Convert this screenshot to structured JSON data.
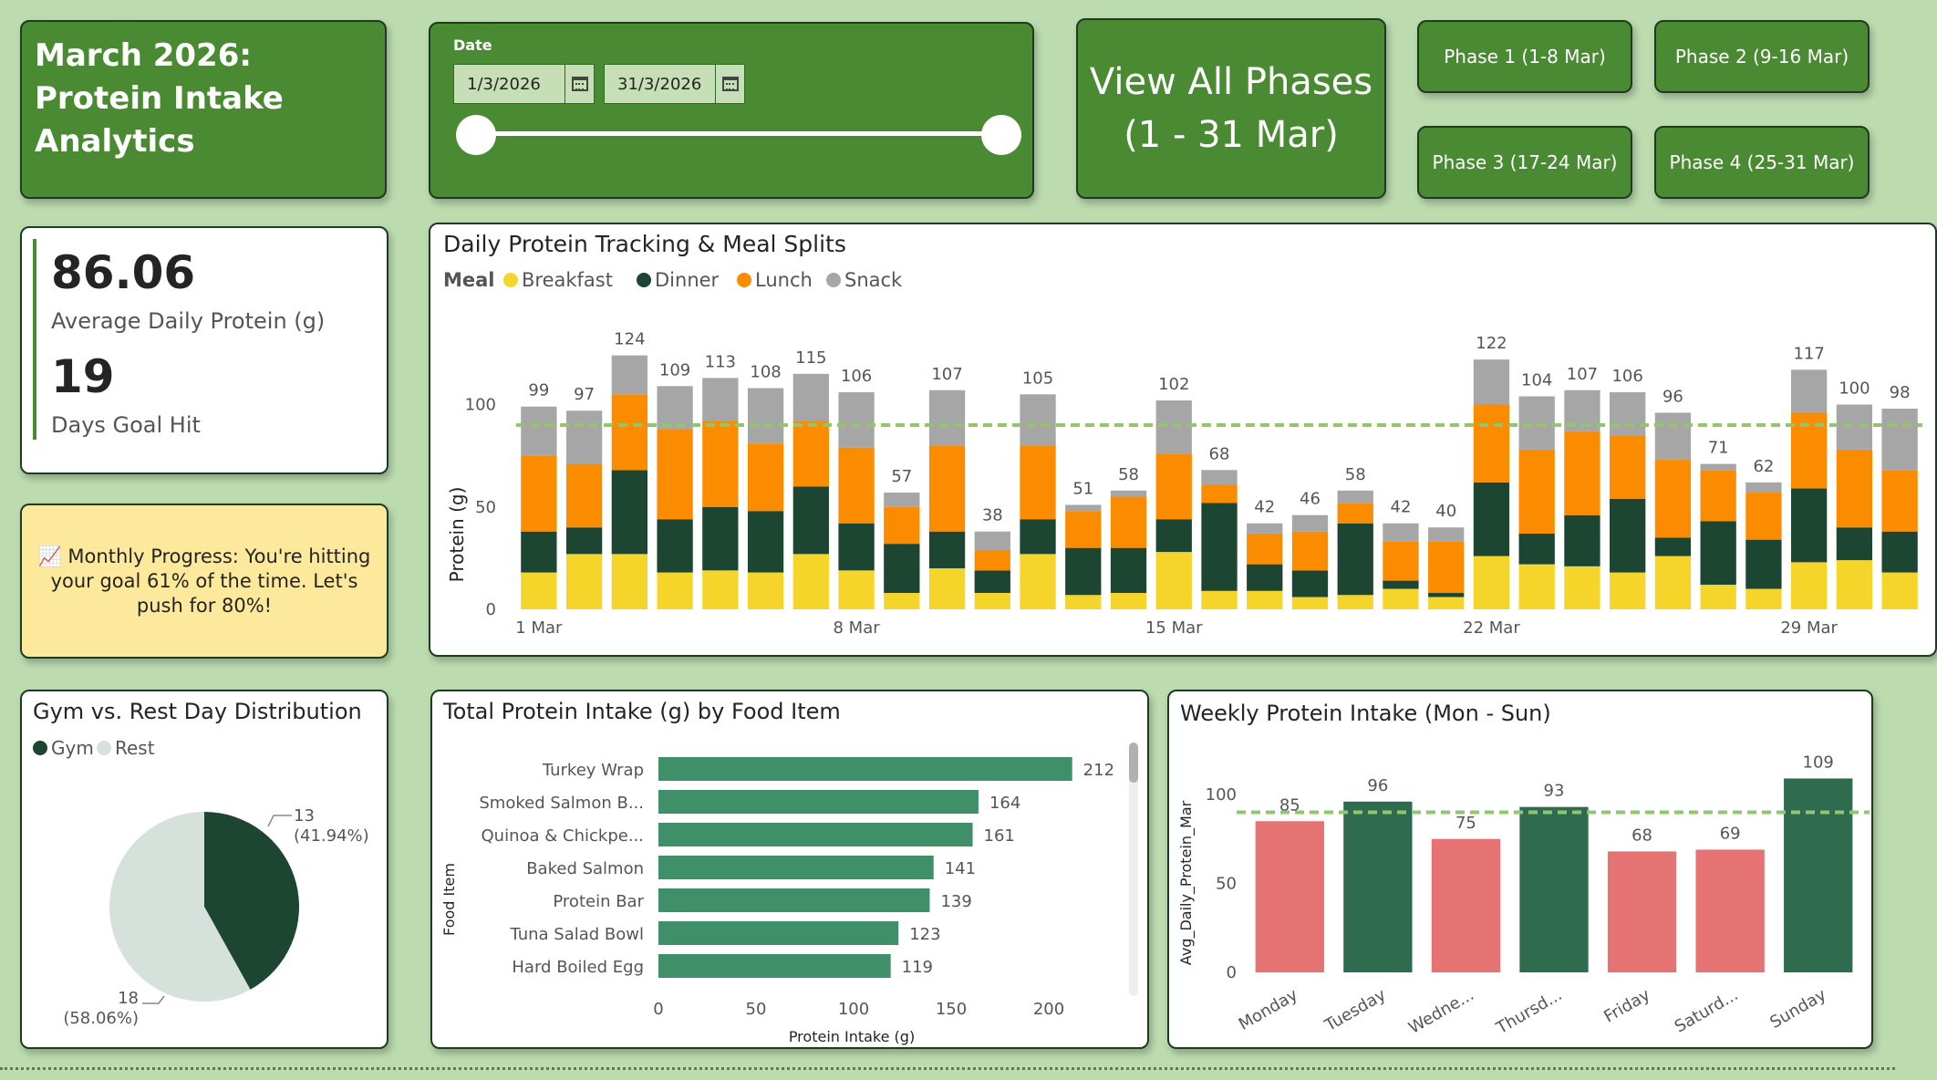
{
  "header": {
    "title_lines": [
      "March 2026:",
      "Protein Intake",
      "Analytics"
    ]
  },
  "date_filter": {
    "label": "Date",
    "start": "1/3/2026",
    "end": "31/3/2026"
  },
  "view_all": {
    "line1": "View All Phases",
    "line2": "(1 - 31 Mar)"
  },
  "phases": {
    "p1": "Phase 1 (1-8 Mar)",
    "p2": "Phase 2 (9-16 Mar)",
    "p3": "Phase 3 (17-24 Mar)",
    "p4": "Phase 4 (25-31 Mar)"
  },
  "kpi": {
    "avg_value": "86.06",
    "avg_label": "Average Daily Protein (g)",
    "days_value": "19",
    "days_label": "Days Goal Hit"
  },
  "progress": {
    "icon": "chart-increasing-icon",
    "text": "📈 Monthly Progress: You're hitting your goal 61% of the time. Let's push for 80%!"
  },
  "colors": {
    "breakfast": "#f6d52a",
    "dinner": "#1c4532",
    "lunch": "#fb8c00",
    "snack": "#a6a6a6",
    "goal_line": "#8fc770",
    "gym": "#1c4532",
    "rest": "#d6e1dc",
    "food_bar": "#3f8f68",
    "below_goal": "#e57373",
    "above_goal": "#2e6b4f"
  },
  "chart_data": [
    {
      "id": "daily",
      "type": "bar",
      "title": "Daily Protein Tracking & Meal Splits",
      "legend_title": "Meal",
      "legend_position": "top-left",
      "ylabel": "Protein (g)",
      "xlabel": "",
      "ylim": [
        0,
        130
      ],
      "yticks": [
        0,
        50,
        100
      ],
      "goal_line": 90,
      "x_tick_labels": [
        {
          "day": 1,
          "label": "1 Mar"
        },
        {
          "day": 8,
          "label": "8 Mar"
        },
        {
          "day": 15,
          "label": "15 Mar"
        },
        {
          "day": 22,
          "label": "22 Mar"
        },
        {
          "day": 29,
          "label": "29 Mar"
        }
      ],
      "categories": [
        1,
        2,
        3,
        4,
        5,
        6,
        7,
        8,
        9,
        10,
        11,
        12,
        13,
        14,
        15,
        16,
        17,
        18,
        19,
        20,
        21,
        22,
        23,
        24,
        25,
        26,
        27,
        28,
        29,
        30,
        31
      ],
      "totals": [
        99,
        97,
        124,
        109,
        113,
        108,
        115,
        106,
        57,
        107,
        38,
        105,
        51,
        58,
        102,
        68,
        42,
        46,
        58,
        42,
        40,
        122,
        104,
        107,
        106,
        96,
        71,
        62,
        117,
        100,
        98
      ],
      "series": [
        {
          "name": "Breakfast",
          "values": [
            18,
            27,
            27,
            18,
            19,
            18,
            27,
            19,
            8,
            20,
            8,
            27,
            7,
            8,
            28,
            9,
            9,
            6,
            7,
            10,
            6,
            26,
            22,
            21,
            18,
            26,
            12,
            10,
            23,
            24,
            18
          ]
        },
        {
          "name": "Dinner",
          "values": [
            20,
            13,
            41,
            26,
            31,
            30,
            33,
            23,
            24,
            18,
            11,
            17,
            23,
            22,
            16,
            43,
            13,
            13,
            35,
            4,
            2,
            36,
            15,
            25,
            36,
            9,
            31,
            24,
            36,
            16,
            20
          ]
        },
        {
          "name": "Lunch",
          "values": [
            37,
            31,
            37,
            44,
            42,
            33,
            32,
            37,
            18,
            42,
            10,
            36,
            18,
            25,
            32,
            9,
            15,
            19,
            10,
            19,
            25,
            38,
            41,
            41,
            31,
            38,
            25,
            23,
            37,
            38,
            30
          ]
        },
        {
          "name": "Snack",
          "values": [
            24,
            26,
            19,
            21,
            21,
            27,
            23,
            27,
            7,
            27,
            9,
            25,
            3,
            3,
            26,
            7,
            5,
            8,
            6,
            9,
            7,
            22,
            26,
            20,
            21,
            23,
            3,
            5,
            21,
            22,
            30
          ]
        }
      ]
    },
    {
      "id": "gym",
      "type": "pie",
      "title": "Gym vs. Rest Day Distribution",
      "legend_position": "top-left",
      "slices": [
        {
          "name": "Gym",
          "value": 13,
          "label": "13",
          "pct": "(41.94%)"
        },
        {
          "name": "Rest",
          "value": 18,
          "label": "18",
          "pct": "(58.06%)"
        }
      ]
    },
    {
      "id": "food",
      "type": "bar",
      "orientation": "horizontal",
      "title": "Total Protein Intake (g) by Food Item",
      "xlabel": "Protein Intake (g)",
      "ylabel": "Food Item",
      "xlim": [
        0,
        230
      ],
      "xticks": [
        0,
        50,
        100,
        150,
        200
      ],
      "categories": [
        "Turkey Wrap",
        "Smoked Salmon B...",
        "Quinoa & Chickpe...",
        "Baked Salmon",
        "Protein Bar",
        "Tuna Salad Bowl",
        "Hard Boiled Egg"
      ],
      "values": [
        212,
        164,
        161,
        141,
        139,
        123,
        119
      ]
    },
    {
      "id": "weekly",
      "type": "bar",
      "title": "Weekly Protein Intake (Mon - Sun)",
      "ylabel": "Avg_Daily_Protein_Mar",
      "xlabel": "",
      "ylim": [
        0,
        120
      ],
      "yticks": [
        0,
        50,
        100
      ],
      "goal_line": 90,
      "categories": [
        "Monday",
        "Tuesday",
        "Wedne...",
        "Thursd...",
        "Friday",
        "Saturd...",
        "Sunday"
      ],
      "values": [
        85,
        96,
        75,
        93,
        68,
        69,
        109
      ]
    }
  ]
}
